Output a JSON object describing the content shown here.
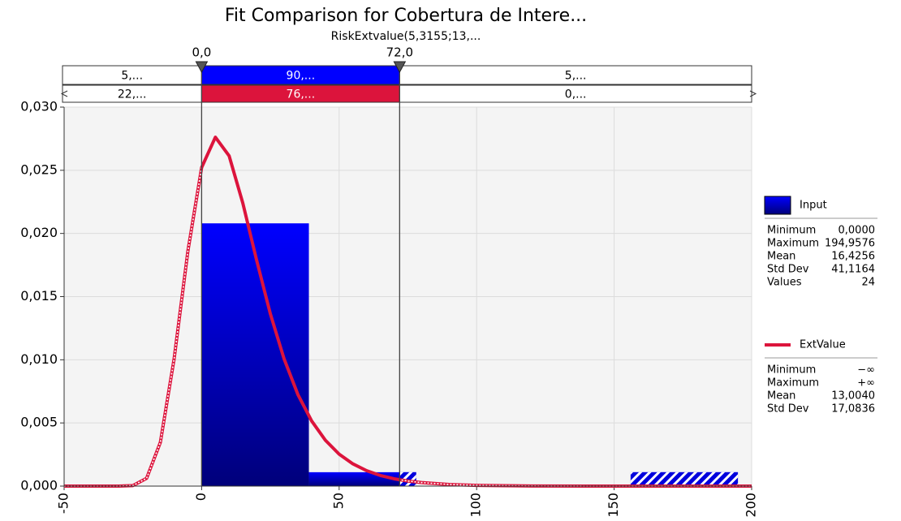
{
  "chart_data": {
    "type": "fit_comparison",
    "title": "Fit Comparison for Cobertura de Intere...",
    "subtitle": "RiskExtvalue(5,3155;13,...",
    "xlim": [
      -50,
      200
    ],
    "ylim": [
      0,
      0.03
    ],
    "xticks": [
      -50,
      0,
      50,
      100,
      150,
      200
    ],
    "yticks": [
      {
        "value": 0,
        "label": "0,000"
      },
      {
        "value": 0.005,
        "label": "0,005"
      },
      {
        "value": 0.01,
        "label": "0,010"
      },
      {
        "value": 0.015,
        "label": "0,015"
      },
      {
        "value": 0.02,
        "label": "0,020"
      },
      {
        "value": 0.025,
        "label": "0,025"
      },
      {
        "value": 0.03,
        "label": "0,030"
      }
    ],
    "grid": true,
    "delimiters": [
      {
        "value": 0,
        "label": "0,0"
      },
      {
        "value": 72,
        "label": "72,0"
      }
    ],
    "band_labels": [
      [
        "5,...",
        "90,...",
        "5,..."
      ],
      [
        "22,...",
        "76,...",
        "0,..."
      ]
    ],
    "series": [
      {
        "name": "Input",
        "type": "histogram",
        "color": "#0000ff",
        "bins": [
          0,
          39,
          78,
          117,
          156,
          195
        ],
        "values": [
          0.0208,
          0.0011,
          0,
          0,
          0.0011
        ],
        "stats": [
          [
            "Minimum",
            "0,0000"
          ],
          [
            "Maximum",
            "194,9576"
          ],
          [
            "Mean",
            "16,4256"
          ],
          [
            "Std Dev",
            "41,1164"
          ],
          [
            "Values",
            "24"
          ]
        ]
      },
      {
        "name": "ExtValue",
        "type": "line",
        "color": "#dc143c",
        "x": [
          -50,
          -40,
          -35,
          -30,
          -25,
          -20,
          -15,
          -10,
          -5,
          0,
          5,
          10,
          15,
          20,
          25,
          30,
          35,
          40,
          45,
          50,
          55,
          60,
          65,
          70,
          75,
          80,
          90,
          100,
          110,
          120,
          140,
          160,
          200
        ],
        "values": [
          0,
          0,
          0,
          1e-06,
          4e-05,
          0.00062,
          0.00347,
          0.01008,
          0.0186,
          0.02522,
          0.02762,
          0.02614,
          0.02238,
          0.01788,
          0.01363,
          0.01006,
          0.00725,
          0.00516,
          0.00363,
          0.00253,
          0.00176,
          0.00122,
          0.00084,
          0.00058,
          0.0004,
          0.00028,
          0.00013,
          6e-05,
          3e-05,
          1e-05,
          0,
          0,
          0
        ],
        "stats": [
          [
            "Minimum",
            "−∞"
          ],
          [
            "Maximum",
            "+∞"
          ],
          [
            "Mean",
            "13,0040"
          ],
          [
            "Std Dev",
            "17,0836"
          ]
        ]
      }
    ]
  }
}
